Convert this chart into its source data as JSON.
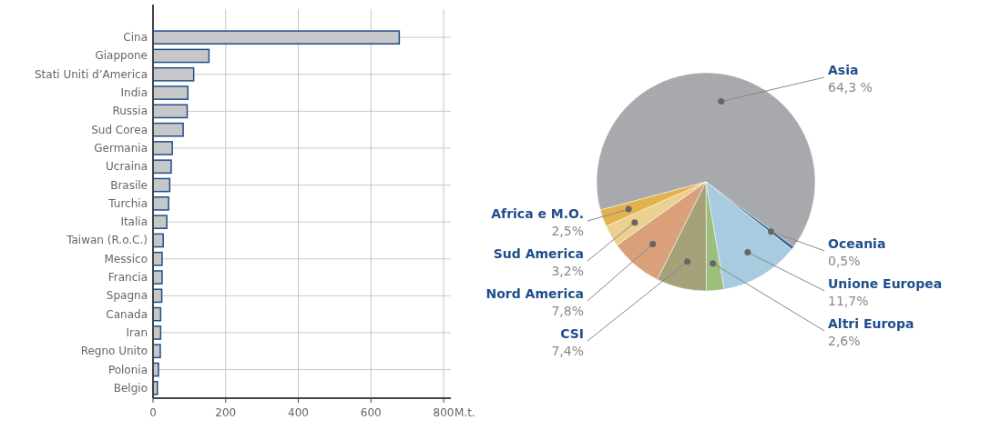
{
  "chart_data": [
    {
      "type": "bar",
      "orientation": "horizontal",
      "xlabel": "M.t.",
      "categories": [
        "Cina",
        "Giappone",
        "Stati Uniti d’America",
        "India",
        "Russia",
        "Sud Corea",
        "Germania",
        "Ucraina",
        "Brasile",
        "Turchia",
        "Italia",
        "Taiwan (R.o.C.)",
        "Messico",
        "Francia",
        "Spagna",
        "Canada",
        "Iran",
        "Regno Unito",
        "Polonia",
        "Belgio"
      ],
      "values": [
        678,
        154,
        112,
        96,
        94,
        83,
        53,
        50,
        46,
        43,
        38,
        28,
        25,
        25,
        24,
        21,
        21,
        20,
        15,
        12
      ],
      "color": "#c6c7c9",
      "xlim": [
        0,
        820
      ],
      "xticks": [
        0,
        200,
        400,
        600,
        800
      ],
      "grid": true,
      "legend": false
    },
    {
      "type": "pie",
      "categories": [
        "Asia",
        "Oceania",
        "Unione Europea",
        "Altri Europa",
        "CSI",
        "Nord America",
        "Sud America",
        "Africa e M.O."
      ],
      "values": [
        64.3,
        0.5,
        11.7,
        2.6,
        7.4,
        7.8,
        3.2,
        2.5
      ],
      "value_labels": [
        "64,3 %",
        "0,5%",
        "11,7%",
        "2,6%",
        "7,4%",
        "7,8%",
        "3,2%",
        "2,5%"
      ],
      "colors": [
        "#a7a9ac",
        "#3d6a9e",
        "#a9cbe0",
        "#9cbf7e",
        "#a5a27a",
        "#d9a07a",
        "#ecd08f",
        "#e3b24f"
      ],
      "legend": false
    }
  ]
}
